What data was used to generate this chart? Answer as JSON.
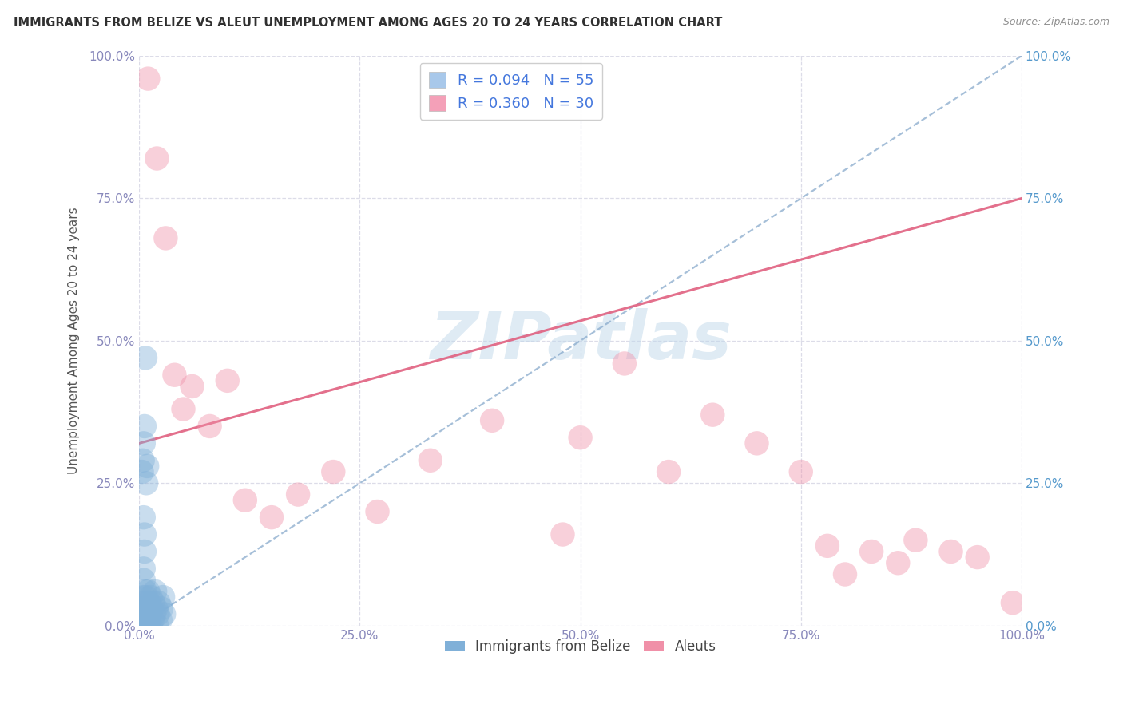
{
  "title": "IMMIGRANTS FROM BELIZE VS ALEUT UNEMPLOYMENT AMONG AGES 20 TO 24 YEARS CORRELATION CHART",
  "source": "Source: ZipAtlas.com",
  "ylabel": "Unemployment Among Ages 20 to 24 years",
  "xlim": [
    0,
    1.0
  ],
  "ylim": [
    0,
    1.0
  ],
  "xticks": [
    0.0,
    0.25,
    0.5,
    0.75,
    1.0
  ],
  "yticks": [
    0.0,
    0.25,
    0.5,
    0.75,
    1.0
  ],
  "xticklabels": [
    "0.0%",
    "25.0%",
    "50.0%",
    "75.0%",
    "100.0%"
  ],
  "yticklabels": [
    "0.0%",
    "25.0%",
    "50.0%",
    "75.0%",
    "100.0%"
  ],
  "legend_r_entries": [
    {
      "label": "R = 0.094   N = 55",
      "color": "#a8c8ea"
    },
    {
      "label": "R = 0.360   N = 30",
      "color": "#f4a0b8"
    }
  ],
  "watermark": "ZIPatlas",
  "blue_scatter_x": [
    0.003,
    0.004,
    0.004,
    0.005,
    0.005,
    0.005,
    0.005,
    0.005,
    0.006,
    0.006,
    0.006,
    0.006,
    0.007,
    0.007,
    0.007,
    0.007,
    0.008,
    0.008,
    0.008,
    0.009,
    0.009,
    0.009,
    0.01,
    0.01,
    0.01,
    0.011,
    0.011,
    0.012,
    0.013,
    0.013,
    0.014,
    0.015,
    0.016,
    0.017,
    0.018,
    0.019,
    0.02,
    0.021,
    0.022,
    0.024,
    0.025,
    0.027,
    0.028,
    0.003,
    0.004,
    0.005,
    0.006,
    0.007,
    0.008,
    0.009,
    0.005,
    0.005,
    0.006,
    0.006,
    0.005
  ],
  "blue_scatter_y": [
    0.0,
    0.0,
    0.01,
    0.0,
    0.01,
    0.02,
    0.03,
    0.05,
    0.0,
    0.01,
    0.02,
    0.04,
    0.0,
    0.01,
    0.03,
    0.06,
    0.0,
    0.02,
    0.05,
    0.0,
    0.02,
    0.04,
    0.0,
    0.03,
    0.06,
    0.01,
    0.04,
    0.02,
    0.0,
    0.05,
    0.03,
    0.01,
    0.04,
    0.02,
    0.06,
    0.03,
    0.0,
    0.02,
    0.04,
    0.01,
    0.03,
    0.05,
    0.02,
    0.27,
    0.29,
    0.32,
    0.35,
    0.47,
    0.25,
    0.28,
    0.08,
    0.1,
    0.13,
    0.16,
    0.19
  ],
  "pink_scatter_x": [
    0.01,
    0.02,
    0.03,
    0.04,
    0.05,
    0.06,
    0.08,
    0.1,
    0.12,
    0.15,
    0.18,
    0.22,
    0.27,
    0.33,
    0.4,
    0.48,
    0.5,
    0.55,
    0.6,
    0.65,
    0.7,
    0.75,
    0.78,
    0.8,
    0.83,
    0.86,
    0.88,
    0.92,
    0.95,
    0.99
  ],
  "pink_scatter_y": [
    0.96,
    0.82,
    0.68,
    0.44,
    0.38,
    0.42,
    0.35,
    0.43,
    0.22,
    0.19,
    0.23,
    0.27,
    0.2,
    0.29,
    0.36,
    0.16,
    0.33,
    0.46,
    0.27,
    0.37,
    0.32,
    0.27,
    0.14,
    0.09,
    0.13,
    0.11,
    0.15,
    0.13,
    0.12,
    0.04
  ],
  "blue_line_x0": 0.0,
  "blue_line_x1": 1.0,
  "blue_line_y0": 0.0,
  "blue_line_y1": 1.0,
  "pink_line_x0": 0.0,
  "pink_line_x1": 1.0,
  "pink_line_y0": 0.32,
  "pink_line_y1": 0.75,
  "background_color": "#ffffff",
  "grid_color": "#dcdce8",
  "blue_scatter_color": "#80b0d8",
  "pink_scatter_color": "#f090a8",
  "blue_line_color": "#88aacc",
  "pink_line_color": "#e06080",
  "title_color": "#303030",
  "left_tick_color": "#8888bb",
  "right_tick_color": "#5599cc",
  "bottom_tick_color": "#8888bb"
}
